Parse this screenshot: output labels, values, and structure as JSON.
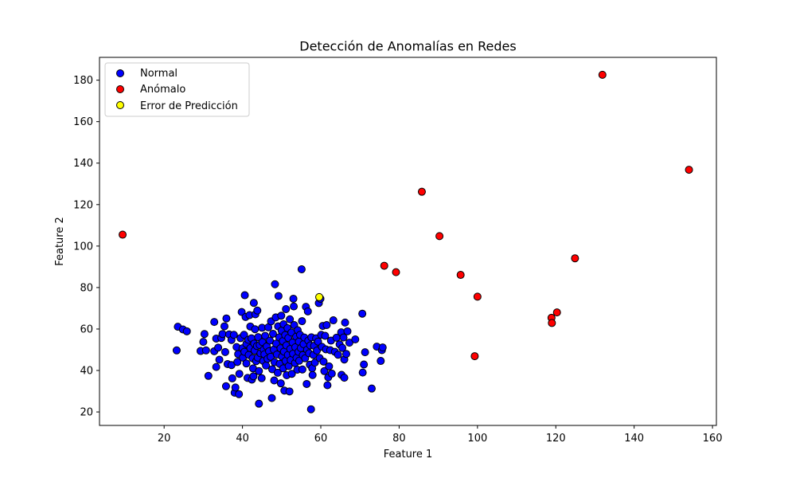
{
  "chart_data": {
    "type": "scatter",
    "title": "Detección de Anomalías en Redes",
    "xlabel": "Feature 1",
    "ylabel": "Feature 2",
    "xlim": [
      3.5,
      161
    ],
    "ylim": [
      13.5,
      191
    ],
    "xticks": [
      20,
      40,
      60,
      80,
      100,
      120,
      140,
      160
    ],
    "yticks": [
      20,
      40,
      60,
      80,
      100,
      120,
      140,
      160,
      180
    ],
    "grid": false,
    "legend_position": "top-left",
    "series": [
      {
        "name": "Normal",
        "color": "#0000ff",
        "points": [
          [
            23.2,
            49.7
          ],
          [
            23.5,
            61.1
          ],
          [
            24.8,
            59.8
          ],
          [
            25.8,
            58.9
          ],
          [
            29.3,
            49.4
          ],
          [
            30.3,
            57.6
          ],
          [
            30.0,
            53.8
          ],
          [
            30.7,
            49.7
          ],
          [
            31.3,
            37.4
          ],
          [
            32.8,
            63.4
          ],
          [
            32.8,
            49.3
          ],
          [
            33.3,
            41.7
          ],
          [
            33.3,
            55.4
          ],
          [
            33.8,
            51.0
          ],
          [
            34.1,
            45.2
          ],
          [
            34.6,
            55.7
          ],
          [
            34.9,
            57.6
          ],
          [
            35.4,
            61.3
          ],
          [
            35.6,
            48.9
          ],
          [
            35.8,
            32.4
          ],
          [
            35.9,
            65.1
          ],
          [
            36.2,
            43.1
          ],
          [
            36.6,
            57.4
          ],
          [
            37.2,
            54.7
          ],
          [
            37.2,
            42.6
          ],
          [
            37.4,
            36.2
          ],
          [
            37.8,
            57.2
          ],
          [
            38.0,
            29.3
          ],
          [
            38.2,
            31.8
          ],
          [
            38.5,
            51.3
          ],
          [
            38.7,
            44.1
          ],
          [
            38.9,
            47.9
          ],
          [
            39.1,
            28.6
          ],
          [
            39.2,
            38.4
          ],
          [
            39.5,
            55.6
          ],
          [
            39.8,
            68.2
          ],
          [
            40.0,
            50.7
          ],
          [
            40.1,
            46.2
          ],
          [
            40.4,
            57.2
          ],
          [
            40.5,
            49.0
          ],
          [
            40.6,
            76.3
          ],
          [
            40.8,
            65.8
          ],
          [
            41.0,
            43.4
          ],
          [
            41.0,
            52.8
          ],
          [
            41.3,
            36.4
          ],
          [
            41.5,
            54.8
          ],
          [
            41.6,
            47.5
          ],
          [
            41.8,
            66.7
          ],
          [
            42.0,
            50.8
          ],
          [
            42.0,
            61.2
          ],
          [
            42.3,
            55.5
          ],
          [
            42.4,
            35.6
          ],
          [
            42.6,
            45.9
          ],
          [
            42.7,
            41.0
          ],
          [
            42.8,
            37.2
          ],
          [
            42.9,
            72.6
          ],
          [
            43.0,
            53.0
          ],
          [
            43.1,
            49.6
          ],
          [
            43.2,
            59.9
          ],
          [
            43.3,
            67.1
          ],
          [
            43.5,
            44.5
          ],
          [
            43.7,
            51.8
          ],
          [
            43.8,
            68.9
          ],
          [
            43.9,
            46.2
          ],
          [
            44.0,
            56.1
          ],
          [
            44.2,
            39.7
          ],
          [
            44.2,
            24.0
          ],
          [
            44.4,
            52.3
          ],
          [
            44.6,
            48.3
          ],
          [
            44.9,
            36.3
          ],
          [
            45.0,
            60.6
          ],
          [
            45.1,
            53.7
          ],
          [
            45.3,
            44.6
          ],
          [
            45.4,
            50.0
          ],
          [
            45.6,
            47.8
          ],
          [
            45.8,
            56.7
          ],
          [
            46.0,
            42.4
          ],
          [
            46.2,
            51.6
          ],
          [
            46.4,
            45.6
          ],
          [
            46.6,
            60.8
          ],
          [
            46.8,
            49.3
          ],
          [
            47.0,
            54.4
          ],
          [
            47.2,
            46.6
          ],
          [
            47.3,
            63.7
          ],
          [
            47.5,
            26.7
          ],
          [
            47.6,
            40.6
          ],
          [
            47.8,
            57.7
          ],
          [
            48.0,
            50.1
          ],
          [
            48.1,
            35.2
          ],
          [
            48.2,
            44.0
          ],
          [
            48.3,
            81.6
          ],
          [
            48.5,
            65.6
          ],
          [
            48.6,
            53.0
          ],
          [
            48.8,
            47.7
          ],
          [
            49.0,
            38.9
          ],
          [
            49.1,
            61.3
          ],
          [
            49.2,
            75.9
          ],
          [
            49.4,
            56.0
          ],
          [
            49.5,
            43.2
          ],
          [
            49.7,
            50.7
          ],
          [
            49.8,
            33.8
          ],
          [
            49.9,
            66.4
          ],
          [
            50.0,
            59.2
          ],
          [
            50.1,
            46.7
          ],
          [
            50.3,
            54.2
          ],
          [
            50.4,
            41.0
          ],
          [
            50.5,
            62.3
          ],
          [
            50.6,
            49.1
          ],
          [
            50.7,
            30.3
          ],
          [
            50.9,
            57.1
          ],
          [
            51.0,
            44.6
          ],
          [
            51.1,
            69.6
          ],
          [
            51.2,
            52.1
          ],
          [
            51.3,
            37.7
          ],
          [
            51.5,
            60.4
          ],
          [
            51.6,
            47.5
          ],
          [
            51.7,
            55.7
          ],
          [
            51.8,
            42.1
          ],
          [
            52.0,
            29.9
          ],
          [
            52.1,
            64.7
          ],
          [
            52.2,
            50.4
          ],
          [
            52.3,
            45.0
          ],
          [
            52.5,
            58.3
          ],
          [
            52.6,
            38.4
          ],
          [
            52.8,
            53.5
          ],
          [
            52.9,
            48.1
          ],
          [
            53.0,
            74.6
          ],
          [
            53.1,
            70.9
          ],
          [
            53.2,
            61.9
          ],
          [
            53.4,
            43.6
          ],
          [
            53.5,
            51.2
          ],
          [
            53.7,
            56.3
          ],
          [
            53.8,
            46.1
          ],
          [
            54.0,
            40.4
          ],
          [
            54.1,
            59.4
          ],
          [
            54.3,
            49.0
          ],
          [
            54.4,
            53.9
          ],
          [
            54.5,
            44.7
          ],
          [
            54.7,
            57.2
          ],
          [
            54.9,
            50.8
          ],
          [
            55.1,
            88.8
          ],
          [
            55.2,
            63.8
          ],
          [
            55.3,
            40.5
          ],
          [
            55.4,
            47.4
          ],
          [
            55.6,
            52.7
          ],
          [
            55.8,
            55.9
          ],
          [
            56.0,
            45.9
          ],
          [
            56.2,
            70.7
          ],
          [
            56.4,
            33.5
          ],
          [
            56.5,
            50.0
          ],
          [
            56.7,
            68.5
          ],
          [
            56.8,
            54.4
          ],
          [
            57.0,
            48.3
          ],
          [
            57.2,
            42.8
          ],
          [
            57.3,
            52.1
          ],
          [
            57.5,
            21.3
          ],
          [
            57.6,
            56.0
          ],
          [
            57.8,
            41.1
          ],
          [
            57.9,
            37.8
          ],
          [
            58.1,
            47.5
          ],
          [
            58.3,
            51.9
          ],
          [
            58.5,
            43.8
          ],
          [
            58.8,
            55.5
          ],
          [
            59.0,
            49.6
          ],
          [
            59.3,
            53.9
          ],
          [
            59.5,
            72.5
          ],
          [
            59.7,
            46.0
          ],
          [
            59.9,
            74.6
          ],
          [
            60.1,
            57.2
          ],
          [
            60.3,
            51.4
          ],
          [
            60.5,
            61.5
          ],
          [
            60.7,
            44.3
          ],
          [
            60.9,
            39.7
          ],
          [
            61.1,
            56.7
          ],
          [
            61.3,
            50.2
          ],
          [
            61.5,
            61.9
          ],
          [
            61.7,
            32.9
          ],
          [
            61.9,
            36.7
          ],
          [
            62.1,
            42.0
          ],
          [
            62.4,
            49.8
          ],
          [
            62.6,
            54.4
          ],
          [
            62.8,
            38.5
          ],
          [
            63.2,
            64.2
          ],
          [
            63.6,
            49.0
          ],
          [
            64.0,
            55.8
          ],
          [
            64.4,
            47.6
          ],
          [
            64.8,
            52.6
          ],
          [
            65.2,
            58.4
          ],
          [
            65.3,
            37.9
          ],
          [
            65.5,
            50.9
          ],
          [
            65.8,
            55.9
          ],
          [
            66.0,
            45.3
          ],
          [
            66.0,
            36.5
          ],
          [
            66.2,
            63.1
          ],
          [
            66.5,
            48.0
          ],
          [
            66.8,
            58.9
          ],
          [
            67.3,
            53.4
          ],
          [
            68.8,
            55.0
          ],
          [
            70.6,
            67.4
          ],
          [
            70.7,
            39.0
          ],
          [
            71.0,
            42.9
          ],
          [
            71.3,
            48.8
          ],
          [
            73.0,
            31.3
          ],
          [
            74.3,
            51.5
          ],
          [
            75.3,
            44.6
          ],
          [
            75.6,
            49.8
          ],
          [
            75.8,
            51.1
          ]
        ]
      },
      {
        "name": "Anómalo",
        "color": "#ff0000",
        "points": [
          [
            9.4,
            105.5
          ],
          [
            76.2,
            90.5
          ],
          [
            79.2,
            87.4
          ],
          [
            85.8,
            126.2
          ],
          [
            90.3,
            104.8
          ],
          [
            95.7,
            86.1
          ],
          [
            99.3,
            46.9
          ],
          [
            100.0,
            75.6
          ],
          [
            118.9,
            65.4
          ],
          [
            119.0,
            62.9
          ],
          [
            120.3,
            68.0
          ],
          [
            124.9,
            94.1
          ],
          [
            131.9,
            182.6
          ],
          [
            154.0,
            136.8
          ]
        ]
      },
      {
        "name": "Error de Predicción",
        "color": "#ffff00",
        "points": [
          [
            59.6,
            75.4
          ]
        ]
      }
    ]
  }
}
